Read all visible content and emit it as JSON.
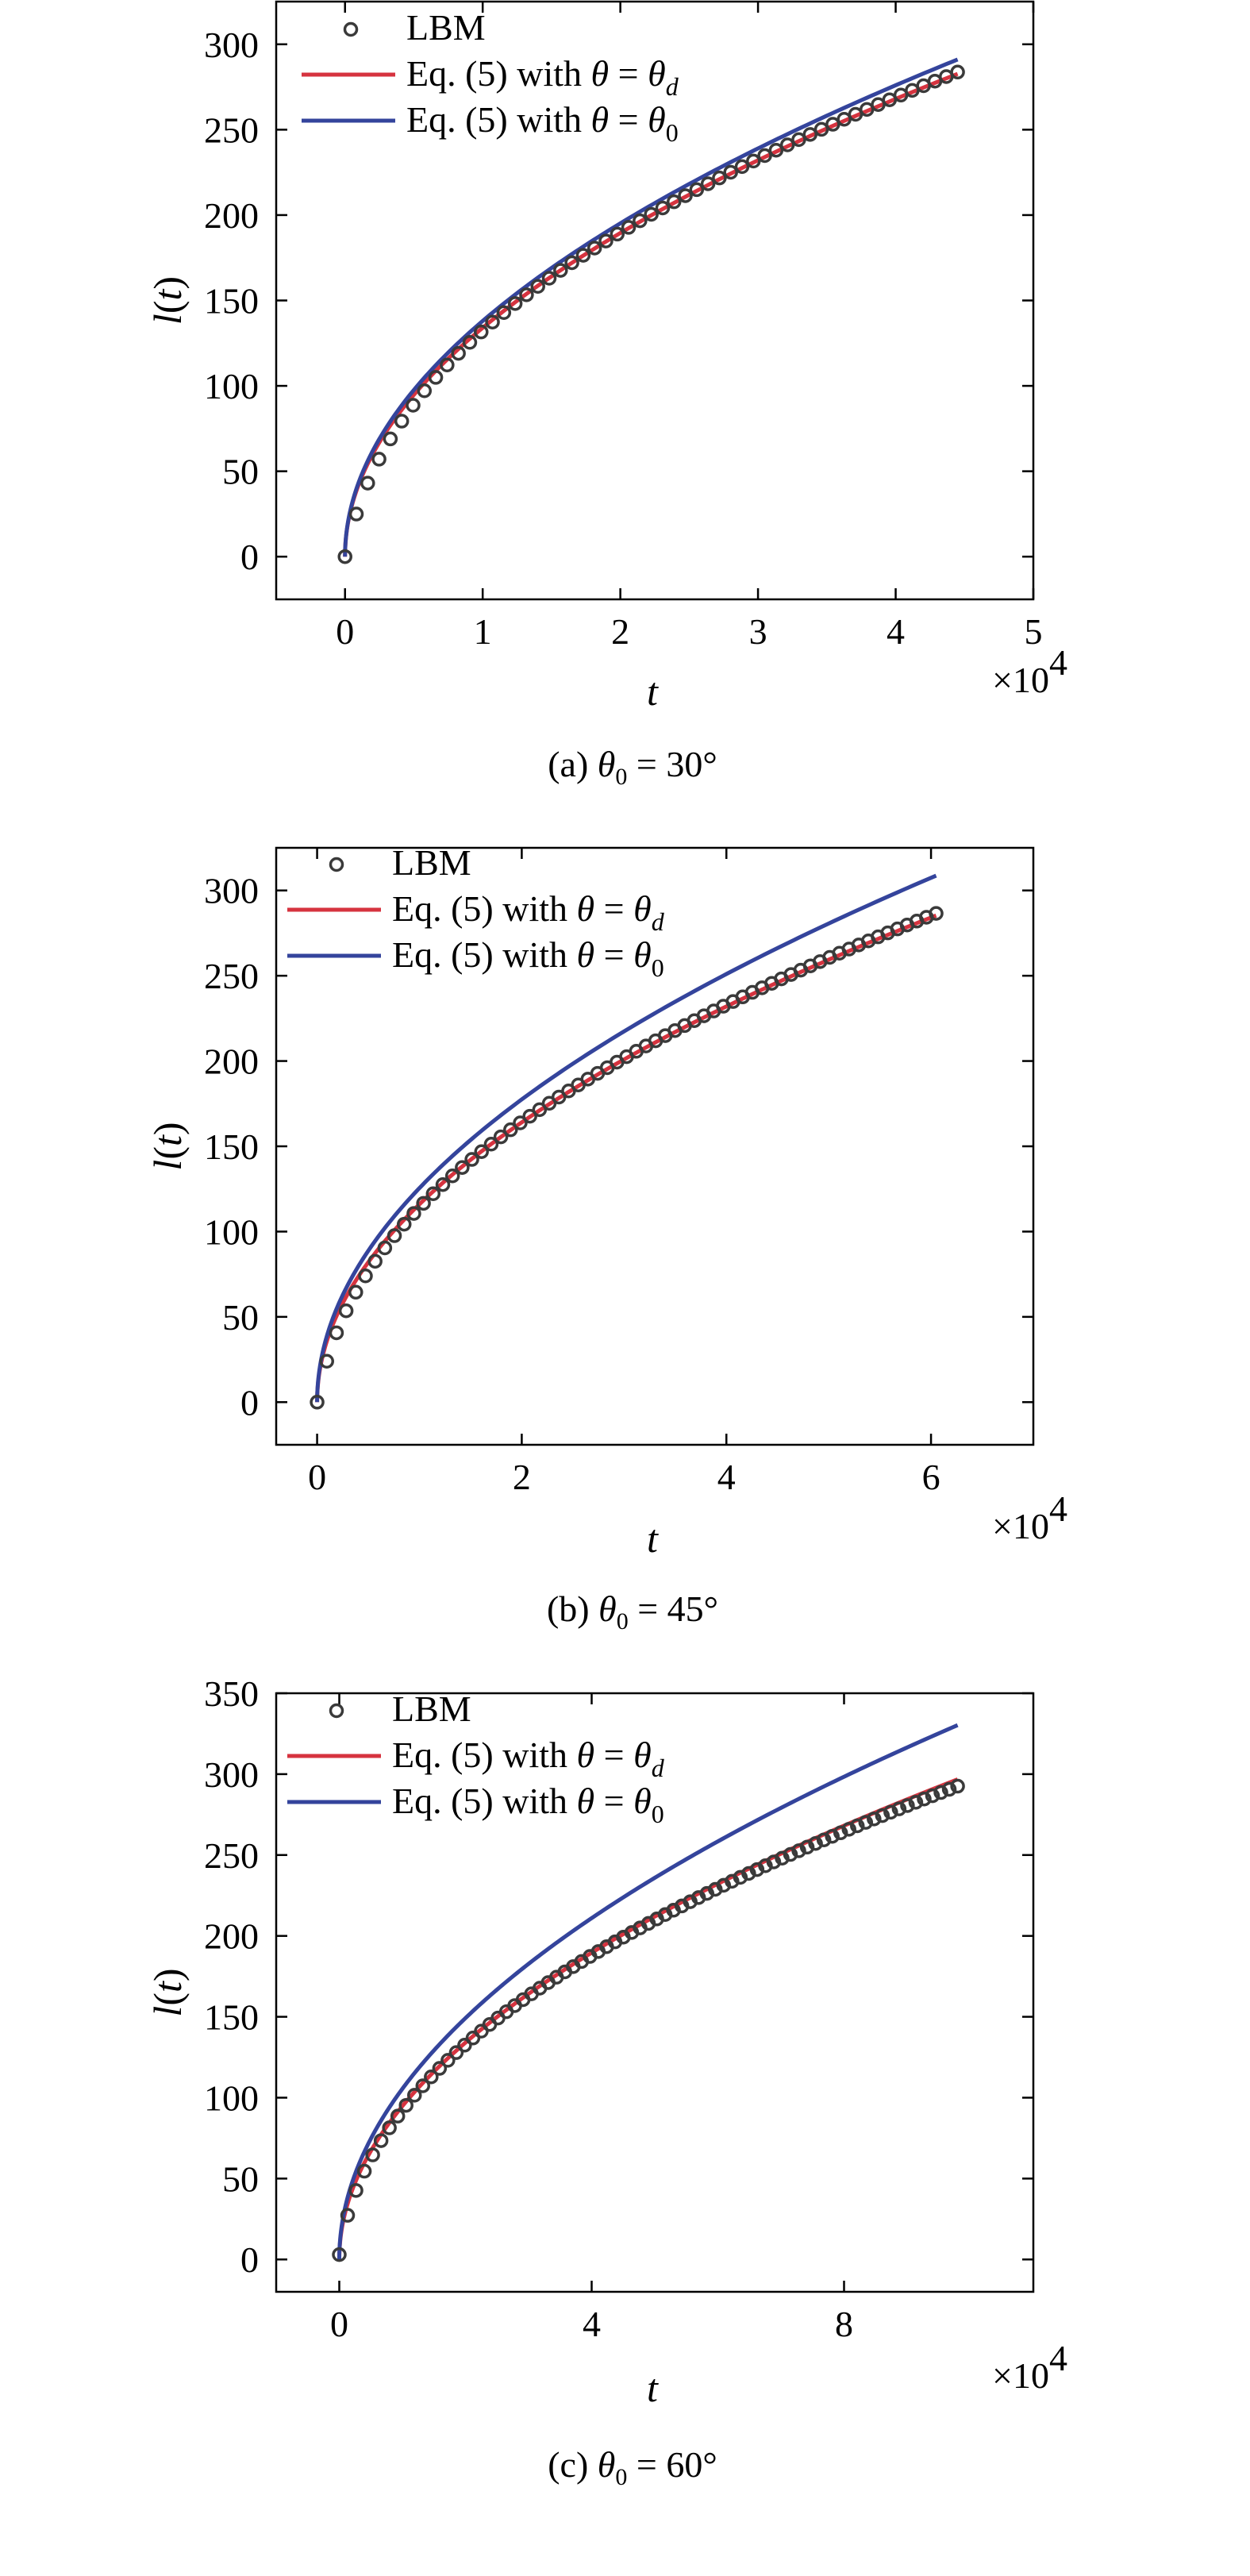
{
  "colors": {
    "lbm_marker": "#3a3a3a",
    "eq5_theta_d": "#d6333f",
    "eq5_theta_0": "#34449c",
    "axes": "#000000"
  },
  "chart_data": [
    {
      "type": "line",
      "panel": "(a)",
      "caption_prefix": "(a) ",
      "caption_theta": "θ",
      "caption_sub": "0",
      "caption_suffix": " = 30°",
      "xlabel": "t",
      "ylabel_l": "l",
      "ylabel_paren_open": "(",
      "ylabel_t": "t",
      "ylabel_paren_close": ")",
      "x_multiplier": "×10",
      "x_multiplier_exp": "4",
      "xlim": [
        -0.5,
        5
      ],
      "ylim": [
        -25,
        325
      ],
      "xticks": [
        0,
        1,
        2,
        3,
        4,
        5
      ],
      "yticks": [
        0,
        50,
        100,
        150,
        200,
        250,
        300
      ],
      "t_end": 4.45,
      "legend": [
        {
          "label_main": "LBM"
        },
        {
          "label_main": "Eq. (5) with ",
          "theta": "θ",
          "eq": " = ",
          "theta2": "θ",
          "sub": "d"
        },
        {
          "label_main": "Eq. (5) with ",
          "theta": "θ",
          "eq": " = ",
          "theta2": "θ",
          "sub": "0"
        }
      ],
      "series": [
        {
          "name": "LBM",
          "kind": "markers",
          "coef": 134.5,
          "pow": 0.5,
          "points": 55,
          "x_start": 0.0
        },
        {
          "name": "Eq. (5) with θ = θd",
          "kind": "line",
          "coef": 134.0,
          "pow": 0.5
        },
        {
          "name": "Eq. (5) with θ = θ0",
          "kind": "line",
          "coef": 138.0,
          "pow": 0.5
        }
      ]
    },
    {
      "type": "line",
      "panel": "(b)",
      "caption_prefix": "(b) ",
      "caption_theta": "θ",
      "caption_sub": "0",
      "caption_suffix": " = 45°",
      "xlabel": "t",
      "ylabel_l": "l",
      "ylabel_paren_open": "(",
      "ylabel_t": "t",
      "ylabel_paren_close": ")",
      "x_multiplier": "×10",
      "x_multiplier_exp": "4",
      "xlim": [
        -0.4,
        7
      ],
      "ylim": [
        -25,
        325
      ],
      "xticks": [
        0,
        2,
        4,
        6
      ],
      "yticks": [
        0,
        50,
        100,
        150,
        200,
        250,
        300
      ],
      "t_end": 6.05,
      "legend": [
        {
          "label_main": "LBM"
        },
        {
          "label_main": "Eq. (5) with ",
          "theta": "θ",
          "eq": " = ",
          "theta2": "θ",
          "sub": "d"
        },
        {
          "label_main": "Eq. (5) with ",
          "theta": "θ",
          "eq": " = ",
          "theta2": "θ",
          "sub": "0"
        }
      ],
      "series": [
        {
          "name": "LBM",
          "kind": "markers",
          "coef": 116.5,
          "pow": 0.5,
          "points": 65,
          "x_start": 0.0
        },
        {
          "name": "Eq. (5) with θ = θd",
          "kind": "line",
          "coef": 116.0,
          "pow": 0.5
        },
        {
          "name": "Eq. (5) with θ = θ0",
          "kind": "line",
          "coef": 125.5,
          "pow": 0.5
        }
      ]
    },
    {
      "type": "line",
      "panel": "(c)",
      "caption_prefix": "(c) ",
      "caption_theta": "θ",
      "caption_sub": "0",
      "caption_suffix": " = 60°",
      "xlabel": "t",
      "ylabel_l": "l",
      "ylabel_paren_open": "(",
      "ylabel_t": "t",
      "ylabel_paren_close": ")",
      "x_multiplier": "×10",
      "x_multiplier_exp": "4",
      "xlim": [
        -1,
        11
      ],
      "ylim": [
        -20,
        350
      ],
      "xticks": [
        0,
        4,
        8
      ],
      "yticks": [
        0,
        50,
        100,
        150,
        200,
        250,
        300,
        350
      ],
      "t_end": 9.8,
      "legend": [
        {
          "label_main": "LBM"
        },
        {
          "label_main": "Eq. (5) with ",
          "theta": "θ",
          "eq": " = ",
          "theta2": "θ",
          "sub": "d"
        },
        {
          "label_main": "Eq. (5) with ",
          "theta": "θ",
          "eq": " = ",
          "theta2": "θ",
          "sub": "0"
        }
      ],
      "series": [
        {
          "name": "LBM",
          "kind": "markers",
          "coef": 92.5,
          "pow": 0.5,
          "points": 75,
          "x_start": 0.0,
          "y_offset": 3
        },
        {
          "name": "Eq. (5) with θ = θd",
          "kind": "line",
          "coef": 94.8,
          "pow": 0.5
        },
        {
          "name": "Eq. (5) with θ = θ0",
          "kind": "line",
          "coef": 105.5,
          "pow": 0.5
        }
      ]
    }
  ]
}
